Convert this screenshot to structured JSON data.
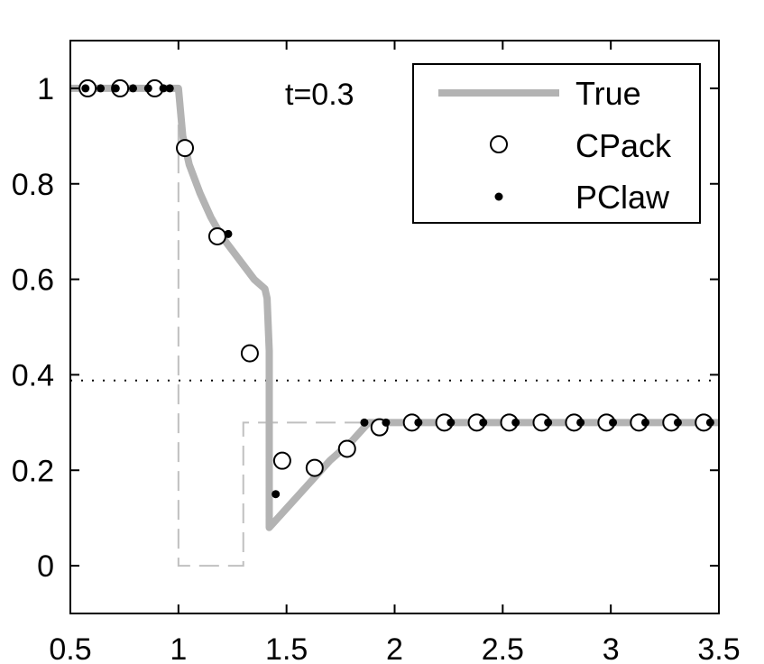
{
  "chart_data": {
    "type": "line",
    "title": "",
    "xlabel": "",
    "ylabel": "",
    "xlim": [
      0.5,
      3.5
    ],
    "ylim": [
      -0.1,
      1.1
    ],
    "xticks": [
      "0.5",
      "1",
      "1.5",
      "2",
      "2.5",
      "3",
      "3.5"
    ],
    "yticks": [
      "0",
      "0.2",
      "0.4",
      "0.6",
      "0.8",
      "1"
    ],
    "annotation": "t=0.3",
    "grid": false,
    "legend_position": "top-right",
    "series": [
      {
        "name": "True",
        "style": "thick gray line",
        "color": "#b3b3b3",
        "x": [
          0.5,
          1.0,
          1.02,
          1.05,
          1.1,
          1.15,
          1.2,
          1.25,
          1.3,
          1.35,
          1.4,
          1.41,
          1.42,
          1.42,
          1.5,
          1.6,
          1.7,
          1.8,
          1.88,
          1.95,
          2.0,
          3.5
        ],
        "y": [
          1.0,
          1.0,
          0.9,
          0.84,
          0.78,
          0.73,
          0.69,
          0.66,
          0.63,
          0.6,
          0.58,
          0.56,
          0.45,
          0.08,
          0.12,
          0.17,
          0.22,
          0.26,
          0.3,
          0.3,
          0.3,
          0.3
        ]
      },
      {
        "name": "CPack",
        "style": "open circle markers",
        "color": "#000000",
        "x": [
          0.58,
          0.73,
          0.89,
          1.03,
          1.18,
          1.33,
          1.48,
          1.63,
          1.78,
          1.93,
          2.08,
          2.23,
          2.38,
          2.53,
          2.68,
          2.83,
          2.98,
          3.13,
          3.28,
          3.43
        ],
        "y": [
          1.0,
          1.0,
          1.0,
          0.875,
          0.69,
          0.445,
          0.22,
          0.205,
          0.245,
          0.29,
          0.3,
          0.3,
          0.3,
          0.3,
          0.3,
          0.3,
          0.3,
          0.3,
          0.3,
          0.3
        ]
      },
      {
        "name": "PClaw",
        "style": "filled dot markers",
        "color": "#000000",
        "x": [
          0.57,
          0.64,
          0.71,
          0.79,
          0.86,
          0.93,
          0.96,
          1.23,
          1.45,
          1.86,
          1.96,
          2.11,
          2.26,
          2.41,
          2.56,
          2.71,
          2.86,
          3.01,
          3.16,
          3.31,
          3.46
        ],
        "y": [
          1.0,
          1.0,
          1.0,
          1.0,
          1.0,
          1.0,
          1.0,
          0.695,
          0.15,
          0.3,
          0.3,
          0.3,
          0.3,
          0.3,
          0.3,
          0.3,
          0.3,
          0.3,
          0.3,
          0.3,
          0.3
        ]
      }
    ],
    "reference_lines": [
      {
        "style": "dashed light gray",
        "color": "#c0c0c0",
        "x": [
          0.5,
          1.0,
          1.0,
          1.3,
          1.3,
          3.5
        ],
        "y": [
          1.0,
          1.0,
          0.0,
          0.0,
          0.3,
          0.3
        ]
      },
      {
        "style": "dotted black horizontal",
        "color": "#000000",
        "y": 0.388
      }
    ]
  }
}
